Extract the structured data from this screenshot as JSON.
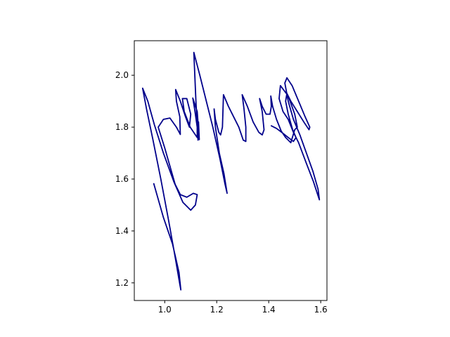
{
  "chart_data": {
    "type": "line",
    "title": "",
    "xlabel": "",
    "ylabel": "",
    "xlim": [
      0.883,
      1.624
    ],
    "ylim": [
      2.133,
      1.132
    ],
    "y_inverted": true,
    "grid": false,
    "legend": "none",
    "x_ticks": [
      {
        "value": 1.0,
        "label": "1.0"
      },
      {
        "value": 1.2,
        "label": "1.2"
      },
      {
        "value": 1.4,
        "label": "1.4"
      },
      {
        "value": 1.6,
        "label": "1.6"
      }
    ],
    "y_ticks": [
      {
        "value": 1.2,
        "label": "1.2"
      },
      {
        "value": 1.4,
        "label": "1.4"
      },
      {
        "value": 1.6,
        "label": "1.6"
      },
      {
        "value": 1.8,
        "label": "1.8"
      },
      {
        "value": 2.0,
        "label": "2.0"
      }
    ],
    "series": [
      {
        "color": "#00008b",
        "points": [
          [
            0.958,
            1.582
          ],
          [
            0.995,
            1.452
          ],
          [
            1.03,
            1.35
          ],
          [
            1.055,
            1.24
          ],
          [
            1.062,
            1.173
          ],
          [
            1.058,
            1.195
          ],
          [
            1.04,
            1.3
          ],
          [
            1.015,
            1.44
          ],
          [
            0.985,
            1.6
          ],
          [
            0.955,
            1.75
          ],
          [
            0.93,
            1.87
          ],
          [
            0.915,
            1.95
          ],
          [
            0.935,
            1.9
          ],
          [
            0.96,
            1.81
          ],
          [
            0.995,
            1.7
          ],
          [
            1.035,
            1.59
          ],
          [
            1.07,
            1.51
          ],
          [
            1.1,
            1.48
          ],
          [
            1.118,
            1.5
          ],
          [
            1.125,
            1.54
          ],
          [
            1.11,
            1.545
          ],
          [
            1.085,
            1.53
          ],
          [
            1.06,
            1.54
          ],
          [
            1.04,
            1.58
          ],
          [
            1.02,
            1.65
          ],
          [
            1.0,
            1.72
          ],
          [
            0.975,
            1.8
          ],
          [
            0.995,
            1.83
          ],
          [
            1.02,
            1.835
          ],
          [
            1.045,
            1.8
          ],
          [
            1.06,
            1.772
          ],
          [
            1.058,
            1.84
          ],
          [
            1.045,
            1.9
          ],
          [
            1.042,
            1.945
          ],
          [
            1.06,
            1.9
          ],
          [
            1.08,
            1.84
          ],
          [
            1.095,
            1.8
          ],
          [
            1.1,
            1.85
          ],
          [
            1.085,
            1.91
          ],
          [
            1.068,
            1.91
          ],
          [
            1.075,
            1.86
          ],
          [
            1.098,
            1.8
          ],
          [
            1.118,
            1.77
          ],
          [
            1.125,
            1.76
          ],
          [
            1.125,
            1.8
          ],
          [
            1.115,
            1.87
          ],
          [
            1.108,
            1.912
          ],
          [
            1.125,
            1.86
          ],
          [
            1.133,
            1.752
          ],
          [
            1.13,
            1.82
          ],
          [
            1.128,
            1.75
          ],
          [
            1.12,
            1.9
          ],
          [
            1.112,
            2.088
          ],
          [
            1.135,
            2.0
          ],
          [
            1.16,
            1.9
          ],
          [
            1.185,
            1.8
          ],
          [
            1.212,
            1.68
          ],
          [
            1.232,
            1.58
          ],
          [
            1.24,
            1.545
          ],
          [
            1.228,
            1.62
          ],
          [
            1.21,
            1.7
          ],
          [
            1.195,
            1.8
          ],
          [
            1.19,
            1.87
          ],
          [
            1.195,
            1.83
          ],
          [
            1.208,
            1.78
          ],
          [
            1.215,
            1.77
          ],
          [
            1.222,
            1.8
          ],
          [
            1.226,
            1.925
          ],
          [
            1.245,
            1.88
          ],
          [
            1.265,
            1.84
          ],
          [
            1.285,
            1.8
          ],
          [
            1.302,
            1.75
          ],
          [
            1.312,
            1.745
          ],
          [
            1.312,
            1.8
          ],
          [
            1.305,
            1.87
          ],
          [
            1.298,
            1.925
          ],
          [
            1.318,
            1.88
          ],
          [
            1.34,
            1.82
          ],
          [
            1.362,
            1.78
          ],
          [
            1.375,
            1.77
          ],
          [
            1.382,
            1.79
          ],
          [
            1.375,
            1.86
          ],
          [
            1.365,
            1.91
          ],
          [
            1.375,
            1.88
          ],
          [
            1.39,
            1.85
          ],
          [
            1.405,
            1.85
          ],
          [
            1.41,
            1.88
          ],
          [
            1.408,
            1.92
          ],
          [
            1.415,
            1.88
          ],
          [
            1.43,
            1.83
          ],
          [
            1.448,
            1.785
          ],
          [
            1.465,
            1.76
          ],
          [
            1.485,
            1.74
          ],
          [
            1.5,
            1.79
          ],
          [
            1.51,
            1.8
          ],
          [
            1.5,
            1.85
          ],
          [
            1.475,
            1.92
          ],
          [
            1.445,
            1.96
          ],
          [
            1.44,
            1.91
          ],
          [
            1.455,
            1.86
          ],
          [
            1.475,
            1.83
          ],
          [
            1.495,
            1.78
          ],
          [
            1.515,
            1.74
          ],
          [
            1.545,
            1.66
          ],
          [
            1.572,
            1.59
          ],
          [
            1.59,
            1.535
          ],
          [
            1.595,
            1.52
          ],
          [
            1.59,
            1.56
          ],
          [
            1.57,
            1.63
          ],
          [
            1.545,
            1.7
          ],
          [
            1.52,
            1.77
          ],
          [
            1.495,
            1.83
          ],
          [
            1.475,
            1.9
          ],
          [
            1.462,
            1.97
          ],
          [
            1.47,
            1.99
          ],
          [
            1.49,
            1.96
          ],
          [
            1.515,
            1.9
          ],
          [
            1.54,
            1.84
          ],
          [
            1.558,
            1.8
          ],
          [
            1.555,
            1.79
          ],
          [
            1.535,
            1.82
          ],
          [
            1.51,
            1.86
          ],
          [
            1.485,
            1.9
          ],
          [
            1.47,
            1.93
          ],
          [
            1.465,
            1.9
          ],
          [
            1.475,
            1.85
          ],
          [
            1.492,
            1.79
          ],
          [
            1.505,
            1.76
          ],
          [
            1.495,
            1.745
          ],
          [
            1.475,
            1.76
          ],
          [
            1.45,
            1.78
          ],
          [
            1.43,
            1.795
          ],
          [
            1.41,
            1.805
          ]
        ]
      }
    ]
  }
}
